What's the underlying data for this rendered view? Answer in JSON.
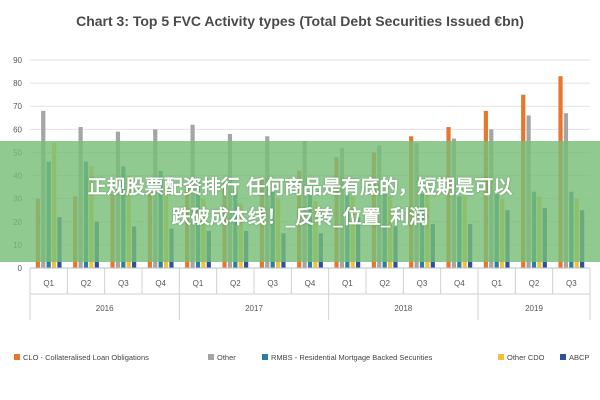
{
  "chart_data": {
    "type": "bar",
    "title": "Chart 3: Top 5 FVC Activity types (Total Debt Securities Issued €bn)",
    "ylim": [
      0,
      90
    ],
    "yticks": [
      0,
      10,
      20,
      30,
      40,
      50,
      60,
      70,
      80,
      90
    ],
    "grid": true,
    "legend_position": "bottom",
    "categories": [
      "Q1",
      "Q2",
      "Q3",
      "Q4",
      "Q1",
      "Q2",
      "Q3",
      "Q4",
      "Q1",
      "Q2",
      "Q3",
      "Q4",
      "Q1",
      "Q2",
      "Q3"
    ],
    "years": [
      {
        "label": "2016",
        "span": 4
      },
      {
        "label": "2017",
        "span": 4
      },
      {
        "label": "2018",
        "span": 4
      },
      {
        "label": "2019",
        "span": 3
      }
    ],
    "series": [
      {
        "name": "CLO - Collateralised Loan Obligations",
        "color": "#e8772e",
        "values": [
          30,
          31,
          32,
          34,
          35,
          37,
          39,
          42,
          48,
          50,
          57,
          61,
          68,
          75,
          83
        ]
      },
      {
        "name": "Other",
        "color": "#a5a5a5",
        "values": [
          68,
          61,
          59,
          60,
          62,
          58,
          57,
          55,
          52,
          53,
          54,
          56,
          60,
          66,
          67
        ]
      },
      {
        "name": "RMBS - Residential Mortgage Backed Securities",
        "color": "#2e7d9a",
        "values": [
          46,
          46,
          44,
          42,
          38,
          35,
          33,
          33,
          32,
          32,
          32,
          31,
          32,
          33,
          33
        ]
      },
      {
        "name": "Other CDO",
        "color": "#f1c232",
        "values": [
          54,
          44,
          40,
          35,
          30,
          28,
          30,
          29,
          31,
          31,
          32,
          31,
          30,
          31,
          30
        ]
      },
      {
        "name": "ABCP",
        "color": "#2f4fa0",
        "values": [
          22,
          20,
          18,
          17,
          16,
          16,
          15,
          15,
          22,
          18,
          19,
          19,
          25,
          26,
          25
        ]
      }
    ]
  },
  "overlay": {
    "line1": "正规股票配资排行 任何商品是有底的，短期是可以",
    "line2": "跌破成本线！_反转_位置_利润"
  }
}
